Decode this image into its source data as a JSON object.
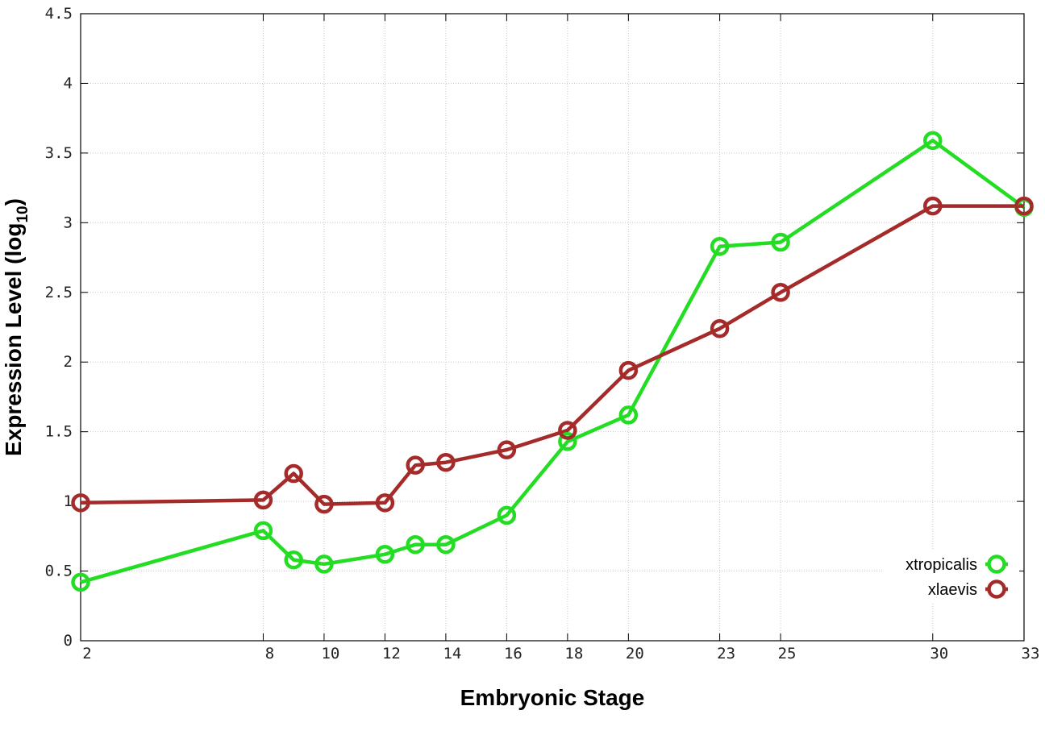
{
  "chart_data": {
    "type": "line",
    "xlabel": "Embryonic Stage",
    "ylabel_main": "Expression Level (log",
    "ylabel_sub": "10",
    "ylabel_close": ")",
    "xlim": [
      2,
      33
    ],
    "ylim": [
      0,
      4.5
    ],
    "x_ticks": [
      2,
      8,
      10,
      12,
      14,
      16,
      18,
      20,
      23,
      25,
      30,
      33
    ],
    "x_tick_labels": [
      "2",
      "8",
      "10",
      "12",
      "14",
      "16",
      "18",
      "20",
      "23",
      "25",
      "30",
      "33"
    ],
    "y_ticks": [
      0,
      0.5,
      1,
      1.5,
      2,
      2.5,
      3,
      3.5,
      4,
      4.5
    ],
    "y_tick_labels": [
      "0",
      "0.5",
      "1",
      "1.5",
      "2",
      "2.5",
      "3",
      "3.5",
      "4",
      "4.5"
    ],
    "grid": true,
    "legend_position": "bottom-right",
    "x": [
      2,
      8,
      9,
      10,
      12,
      13,
      14,
      16,
      18,
      20,
      23,
      25,
      30,
      33
    ],
    "series": [
      {
        "name": "xtropicalis",
        "color": "#22dd22",
        "values": [
          0.42,
          0.79,
          0.58,
          0.55,
          0.62,
          0.69,
          0.69,
          0.9,
          1.43,
          1.62,
          2.83,
          2.86,
          3.59,
          3.11
        ]
      },
      {
        "name": "xlaevis",
        "color": "#a52a2a",
        "values": [
          0.99,
          1.01,
          1.2,
          0.98,
          0.99,
          1.26,
          1.28,
          1.37,
          1.51,
          1.94,
          2.24,
          2.5,
          3.12,
          3.12
        ]
      }
    ]
  }
}
